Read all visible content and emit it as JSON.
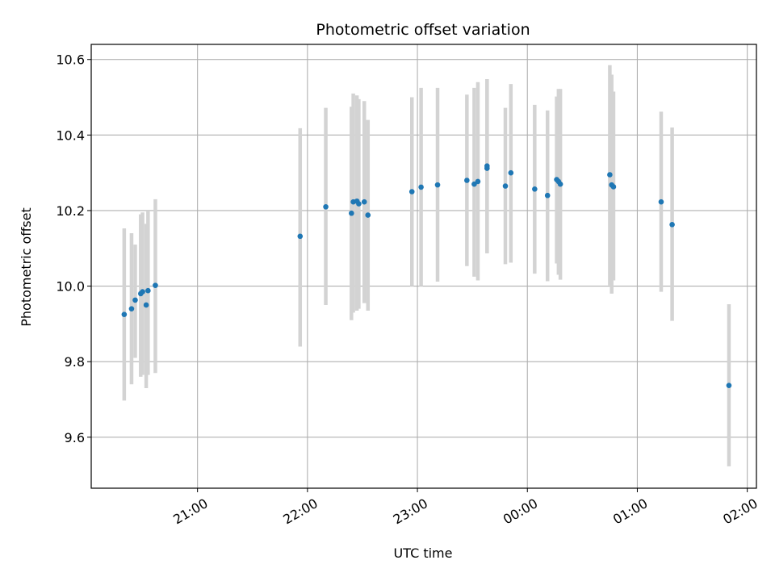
{
  "chart_data": {
    "type": "scatter",
    "title": "Photometric offset variation",
    "xlabel": "UTC time",
    "ylabel": "Photometric offset",
    "xlim": [
      "20:02",
      "02:05"
    ],
    "ylim": [
      9.465,
      10.64
    ],
    "x_ticks": [
      "21:00",
      "22:00",
      "23:00",
      "00:00",
      "01:00",
      "02:00"
    ],
    "y_ticks": [
      "9.6",
      "9.8",
      "10.0",
      "10.2",
      "10.4",
      "10.6"
    ],
    "grid": true,
    "point_color": "#1f77b4",
    "errorbar_color": "#d3d3d3",
    "points": [
      {
        "t": "20:20",
        "y": 9.925,
        "lo": 9.697,
        "hi": 10.153
      },
      {
        "t": "20:24",
        "y": 9.94,
        "lo": 9.74,
        "hi": 10.14
      },
      {
        "t": "20:26",
        "y": 9.963,
        "lo": 9.81,
        "hi": 10.11
      },
      {
        "t": "20:29",
        "y": 9.98,
        "lo": 9.76,
        "hi": 10.19
      },
      {
        "t": "20:30",
        "y": 9.985,
        "lo": 9.765,
        "hi": 10.195
      },
      {
        "t": "20:32",
        "y": 9.95,
        "lo": 9.73,
        "hi": 10.165
      },
      {
        "t": "20:33",
        "y": 9.988,
        "lo": 9.765,
        "hi": 10.2
      },
      {
        "t": "20:37",
        "y": 10.002,
        "lo": 9.77,
        "hi": 10.23
      },
      {
        "t": "21:56",
        "y": 10.132,
        "lo": 9.84,
        "hi": 10.418
      },
      {
        "t": "22:10",
        "y": 10.21,
        "lo": 9.95,
        "hi": 10.472
      },
      {
        "t": "22:24",
        "y": 10.193,
        "lo": 9.91,
        "hi": 10.475
      },
      {
        "t": "22:25",
        "y": 10.223,
        "lo": 9.93,
        "hi": 10.51
      },
      {
        "t": "22:27",
        "y": 10.225,
        "lo": 9.935,
        "hi": 10.505
      },
      {
        "t": "22:28",
        "y": 10.218,
        "lo": 9.94,
        "hi": 10.495
      },
      {
        "t": "22:31",
        "y": 10.223,
        "lo": 9.955,
        "hi": 10.49
      },
      {
        "t": "22:33",
        "y": 10.188,
        "lo": 9.935,
        "hi": 10.44
      },
      {
        "t": "22:57",
        "y": 10.25,
        "lo": 10.0,
        "hi": 10.5
      },
      {
        "t": "23:02",
        "y": 10.262,
        "lo": 10.0,
        "hi": 10.525
      },
      {
        "t": "23:11",
        "y": 10.268,
        "lo": 10.012,
        "hi": 10.525
      },
      {
        "t": "23:27",
        "y": 10.28,
        "lo": 10.053,
        "hi": 10.507
      },
      {
        "t": "23:31",
        "y": 10.27,
        "lo": 10.025,
        "hi": 10.525
      },
      {
        "t": "23:33",
        "y": 10.277,
        "lo": 10.015,
        "hi": 10.54
      },
      {
        "t": "23:38",
        "y": 10.318,
        "lo": 10.087,
        "hi": 10.548
      },
      {
        "t": "23:38",
        "y": 10.312,
        "lo": 10.087,
        "hi": 10.548
      },
      {
        "t": "23:48",
        "y": 10.265,
        "lo": 10.058,
        "hi": 10.472
      },
      {
        "t": "23:51",
        "y": 10.3,
        "lo": 10.062,
        "hi": 10.535
      },
      {
        "t": "00:04",
        "y": 10.257,
        "lo": 10.033,
        "hi": 10.48
      },
      {
        "t": "00:11",
        "y": 10.24,
        "lo": 10.013,
        "hi": 10.465
      },
      {
        "t": "00:16",
        "y": 10.282,
        "lo": 10.06,
        "hi": 10.502
      },
      {
        "t": "00:17",
        "y": 10.277,
        "lo": 10.03,
        "hi": 10.522
      },
      {
        "t": "00:18",
        "y": 10.27,
        "lo": 10.017,
        "hi": 10.522
      },
      {
        "t": "00:45",
        "y": 10.295,
        "lo": 10.002,
        "hi": 10.585
      },
      {
        "t": "00:46",
        "y": 10.268,
        "lo": 9.98,
        "hi": 10.56
      },
      {
        "t": "00:47",
        "y": 10.263,
        "lo": 10.015,
        "hi": 10.515
      },
      {
        "t": "01:13",
        "y": 10.223,
        "lo": 9.985,
        "hi": 10.462
      },
      {
        "t": "01:19",
        "y": 10.163,
        "lo": 9.908,
        "hi": 10.42
      },
      {
        "t": "01:50",
        "y": 9.737,
        "lo": 9.523,
        "hi": 9.952
      }
    ]
  }
}
